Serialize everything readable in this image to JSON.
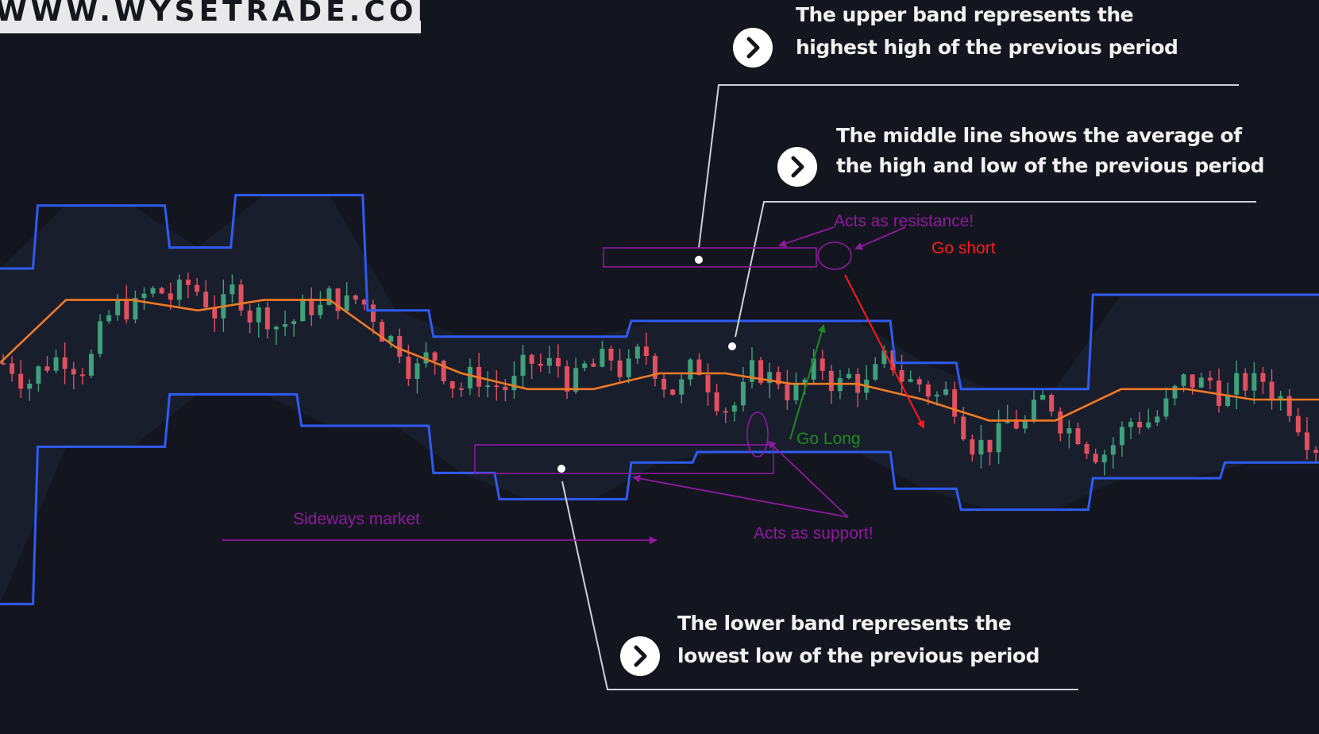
{
  "watermark": "WWW.WYSETRADE.COM",
  "callouts": {
    "upper": [
      "The upper band represents the",
      "highest high of the previous period"
    ],
    "middle": [
      "The middle line shows the average of",
      "the high and low of the previous period"
    ],
    "lower": [
      "The lower band represents the",
      "lowest low of the previous period"
    ]
  },
  "annotations": {
    "resistance": "Acts as resistance!",
    "go_short": "Go short",
    "go_long": "Go Long",
    "sideways": "Sideways market",
    "support": "Acts as support!"
  },
  "colors": {
    "background": "#14161f",
    "upper_band": "#2f5bf0",
    "lower_band": "#2f5bf0",
    "middle_line": "#f07a24",
    "bull_candle": "#3fa07a",
    "bear_candle": "#e0505e",
    "annotation_purple": "#8e1a9e",
    "go_short": "#ff1a1a",
    "go_long": "#1f8a1f",
    "leader_line": "#d0d0d6"
  },
  "icons": {
    "callout_badge": "chevron-right-icon"
  },
  "chart_data": {
    "type": "line",
    "title": "",
    "xlabel": "",
    "ylabel": "",
    "ylim": [
      0,
      100
    ],
    "x": [
      0,
      5,
      10,
      15,
      20,
      25,
      30,
      35,
      40,
      45,
      50,
      55,
      60,
      65,
      70,
      75,
      80,
      85,
      90,
      95,
      100
    ],
    "series": [
      {
        "role": "upper band",
        "values": [
          70,
          82,
          82,
          74,
          84,
          84,
          62,
          57,
          57,
          57,
          60,
          60,
          60,
          60,
          52,
          47,
          47,
          65,
          65,
          65,
          65
        ]
      },
      {
        "role": "middle line",
        "values": [
          52,
          64,
          64,
          62,
          64,
          64,
          55,
          50,
          47,
          47,
          50,
          50,
          48,
          48,
          45,
          41,
          41,
          47,
          47,
          45,
          45
        ]
      },
      {
        "role": "lower band",
        "values": [
          6,
          36,
          36,
          46,
          46,
          40,
          40,
          31,
          26,
          26,
          33,
          35,
          35,
          35,
          28,
          24,
          24,
          30,
          30,
          33,
          33
        ]
      }
    ]
  }
}
